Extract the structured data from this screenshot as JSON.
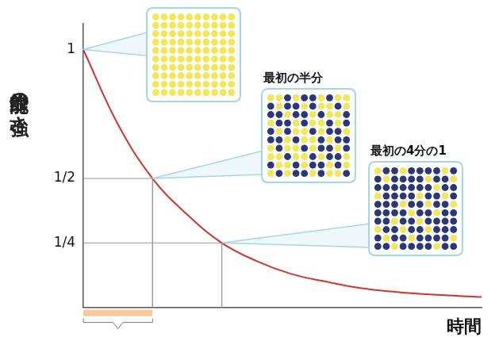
{
  "chart_data": {
    "type": "line",
    "y_label": "放射能の強さ",
    "x_label": "時間",
    "x": [
      0,
      0.5,
      1,
      1.5,
      2,
      2.5,
      3,
      3.5,
      4,
      4.5,
      5,
      5.75
    ],
    "values": [
      1,
      0.71,
      0.5,
      0.36,
      0.25,
      0.18,
      0.13,
      0.1,
      0.075,
      0.06,
      0.05,
      0.04
    ],
    "color": "#d0342c",
    "xlim": [
      0,
      5.75
    ],
    "ylim": [
      0,
      1.1
    ],
    "yticks": [
      1,
      {
        "value": 0.5,
        "label": "1/2"
      },
      {
        "value": 0.25,
        "label": "1/4"
      }
    ],
    "tick_labels": "y",
    "grid": false,
    "guides": [
      {
        "x": 1,
        "y": 0.5
      },
      {
        "x": 2,
        "y": 0.25
      }
    ],
    "bracket": {
      "from": 0,
      "to": 1
    },
    "callouts": [
      {
        "x": 0,
        "y": 1,
        "remaining": 1
      },
      {
        "x": 1,
        "y": 0.5,
        "label": "最初の半分",
        "remaining": 0.5
      },
      {
        "x": 2,
        "y": 0.25,
        "label": "最初の4分の1",
        "remaining": 0.25
      }
    ]
  }
}
